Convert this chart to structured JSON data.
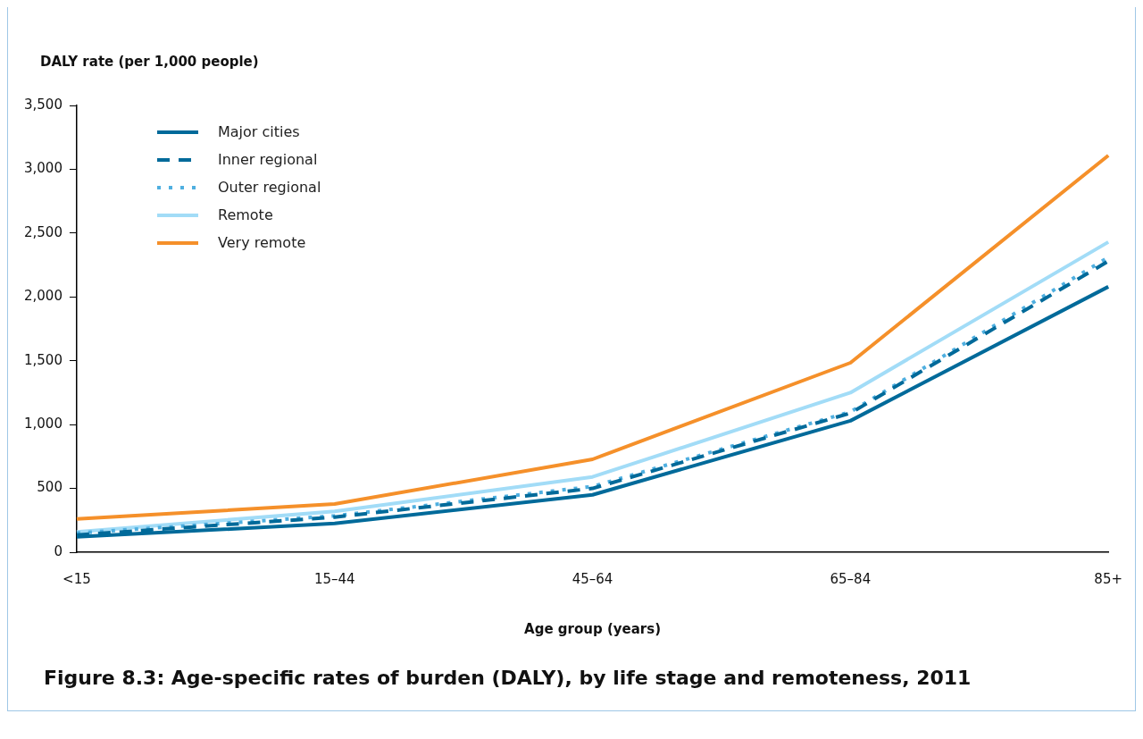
{
  "chart_data": {
    "type": "line",
    "title": "Figure 8.3: Age-specific rates of burden (DALY), by life stage and remoteness, 2011",
    "ylabel": "DALY rate (per 1,000 people)",
    "xlabel": "Age group (years)",
    "categories": [
      "<15",
      "15–44",
      "45–64",
      "65–84",
      "85+"
    ],
    "series": [
      {
        "name": "Major cities",
        "color": "#006a9a",
        "line_style": "solid",
        "values": [
          120,
          225,
          450,
          1030,
          2080
        ]
      },
      {
        "name": "Inner regional",
        "color": "#006a9a",
        "line_style": "dashed",
        "values": [
          135,
          275,
          500,
          1090,
          2280
        ]
      },
      {
        "name": "Outer regional",
        "color": "#4fafe0",
        "line_style": "dotted",
        "values": [
          150,
          285,
          515,
          1100,
          2310
        ]
      },
      {
        "name": "Remote",
        "color": "#a2dcf7",
        "line_style": "solid",
        "values": [
          160,
          320,
          590,
          1250,
          2430
        ]
      },
      {
        "name": "Very remote",
        "color": "#f5902a",
        "line_style": "solid",
        "values": [
          260,
          378,
          728,
          1484,
          3108
        ]
      }
    ],
    "ylim": [
      0,
      3500
    ],
    "yticks": [
      {
        "value": 0,
        "label": "0"
      },
      {
        "value": 500,
        "label": "500"
      },
      {
        "value": 1000,
        "label": "1,000"
      },
      {
        "value": 1500,
        "label": "1,500"
      },
      {
        "value": 2000,
        "label": "2,000"
      },
      {
        "value": 2500,
        "label": "2,500"
      },
      {
        "value": 3000,
        "label": "3,000"
      },
      {
        "value": 3500,
        "label": "3,500"
      }
    ],
    "grid": false,
    "legend": "top left",
    "marker": "none"
  }
}
